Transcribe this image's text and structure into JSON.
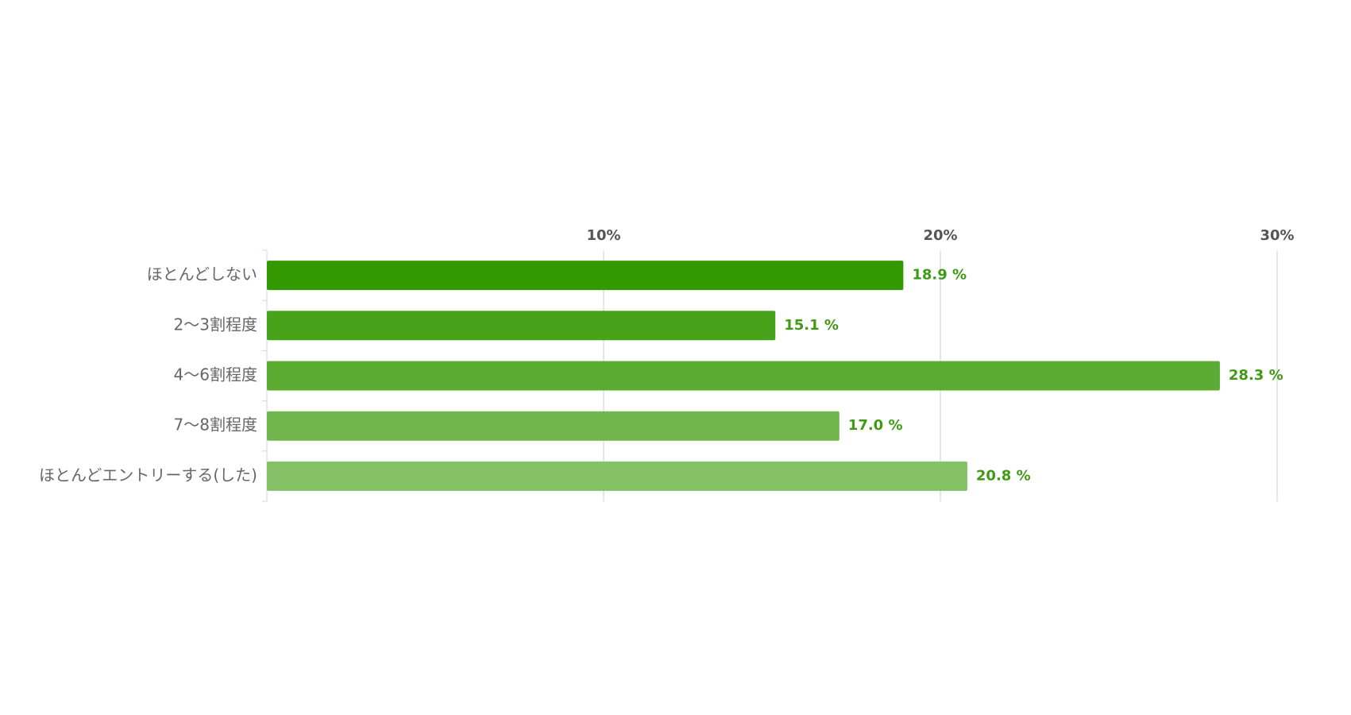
{
  "chart_data": {
    "type": "bar",
    "orientation": "horizontal",
    "categories": [
      "ほとんどしない",
      "2～3割程度",
      "4～6割程度",
      "7～8割程度",
      "ほとんどエントリーする(した)"
    ],
    "values": [
      18.9,
      15.1,
      28.3,
      17.0,
      20.8
    ],
    "value_labels": [
      "18.9 %",
      "15.1 %",
      "28.3 %",
      "17.0 %",
      "20.8 %"
    ],
    "colors": [
      "#339900",
      "#48a31a",
      "#5cac33",
      "#70b64d",
      "#84c066"
    ],
    "xlim": [
      0,
      30
    ],
    "xticks": [
      {
        "value": 10,
        "label": "10%"
      },
      {
        "value": 20,
        "label": "20%"
      },
      {
        "value": 30,
        "label": "30%"
      }
    ],
    "grid": true
  }
}
